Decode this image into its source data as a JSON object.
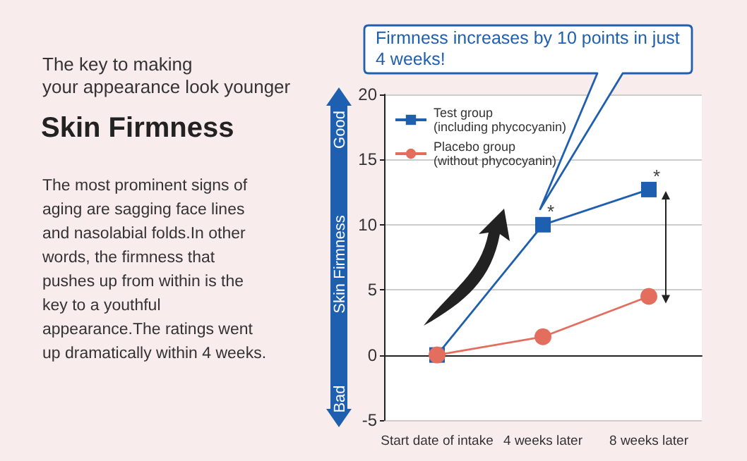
{
  "chart_data": {
    "type": "line",
    "title": "Skin Firmness",
    "subtitle": "The key to making\nyour appearance look younger",
    "ylabel": "Skin Firmness",
    "annotations": [
      "The most prominent signs of aging are sagging face lines and nasolabial folds.In other words, the firmness that pushes up from within is the key to a youthful appearance.The ratings went up dramatically within 4 weeks.",
      "Good",
      "Bad",
      "Firmness increases by 10 points in just 4 weeks!",
      {
        "text": "*",
        "x": "4 weeks later",
        "y": 10
      },
      {
        "text": "*",
        "x": "8 weeks later",
        "y": 12.7
      }
    ],
    "categories": [
      "Start date of intake",
      "4 weeks later",
      "8 weeks later"
    ],
    "series": [
      {
        "name": "Test group\n(including phycocyanin)",
        "color": "#1f5fb0",
        "marker": "square",
        "values": [
          0,
          10,
          12.7
        ]
      },
      {
        "name": "Placebo group\n(without phycocyanin)",
        "color": "#e36e5e",
        "marker": "circle",
        "values": [
          0,
          1.4,
          4.5
        ]
      }
    ],
    "ylim": [
      -5,
      20
    ],
    "yticks": [
      -5,
      0,
      5,
      10,
      15,
      20
    ],
    "grid": "y",
    "legend": "top left",
    "line_style": "solid"
  }
}
